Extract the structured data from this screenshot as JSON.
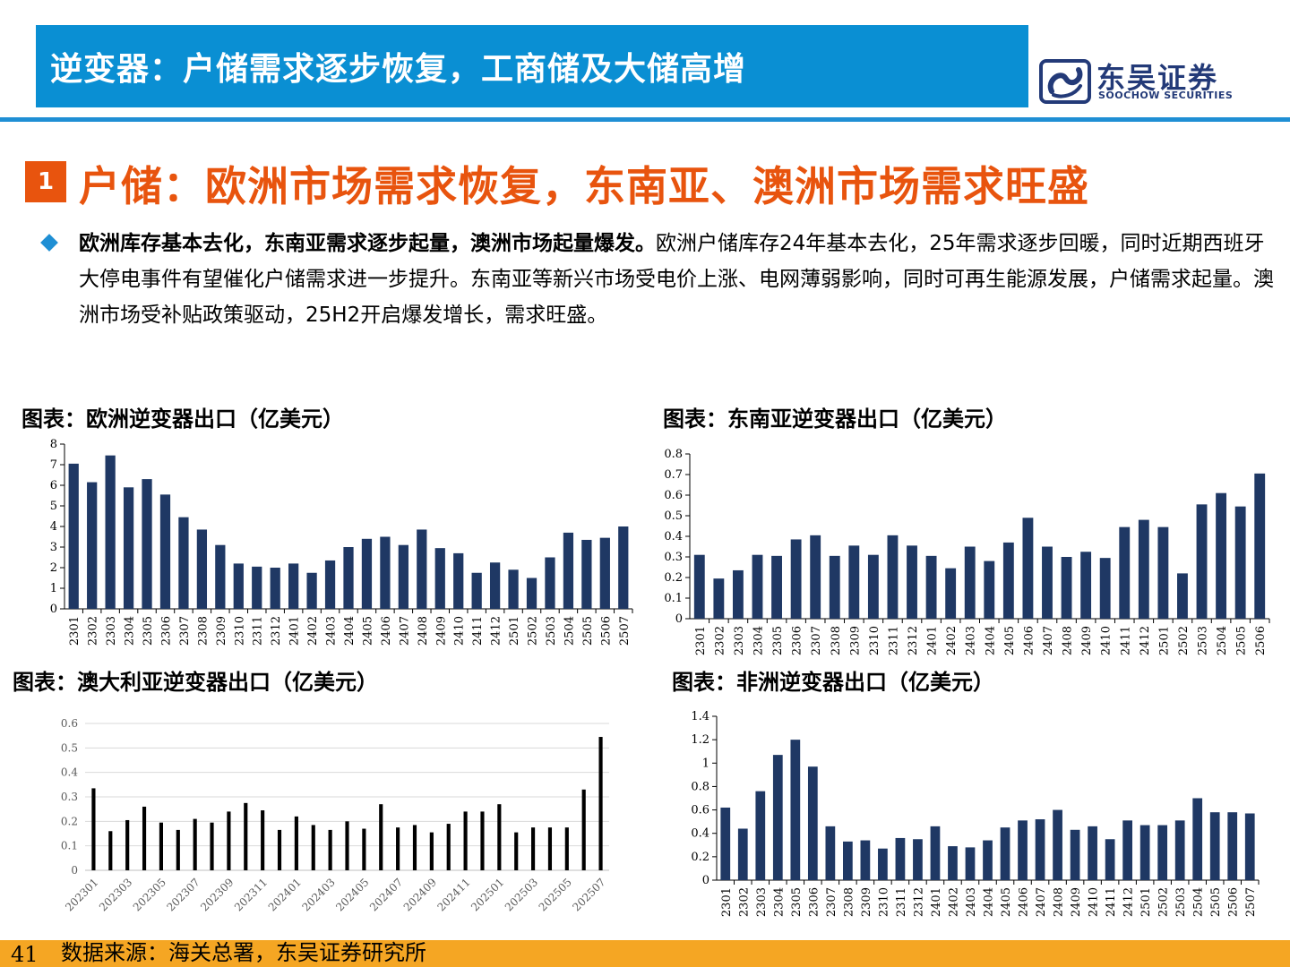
{
  "header": {
    "title": "逆变器：户储需求逐步恢复，工商储及大储高增",
    "logo_cn": "东吴证券",
    "logo_en": "SOOCHOW SECURITIES"
  },
  "section": {
    "number": "1",
    "title": "户储：欧洲市场需求恢复，东南亚、澳洲市场需求旺盛"
  },
  "paragraph": {
    "bold": "欧洲库存基本去化，东南亚需求逐步起量，澳洲市场起量爆发。",
    "text": "欧洲户储库存24年基本去化，25年需求逐步回暖，同时近期西班牙大停电事件有望催化户储需求进一步提升。东南亚等新兴市场受电价上涨、电网薄弱影响，同时可再生能源发展，户储需求起量。澳洲市场受补贴政策驱动，25H2开启爆发增长，需求旺盛。"
  },
  "chart_titles": {
    "europe": "图表：欧洲逆变器出口（亿美元）",
    "sea": "图表：东南亚逆变器出口（亿美元）",
    "australia": "图表：澳大利亚逆变器出口（亿美元）",
    "africa": "图表：非洲逆变器出口（亿美元）"
  },
  "chart_data": [
    {
      "id": "europe",
      "type": "bar",
      "color": "#1f3864",
      "categories": [
        "2301",
        "2302",
        "2303",
        "2304",
        "2305",
        "2306",
        "2307",
        "2308",
        "2309",
        "2310",
        "2311",
        "2312",
        "2401",
        "2402",
        "2403",
        "2404",
        "2405",
        "2406",
        "2407",
        "2408",
        "2409",
        "2410",
        "2411",
        "2412",
        "2501",
        "2502",
        "2503",
        "2504",
        "2505",
        "2506",
        "2507"
      ],
      "values": [
        7.05,
        6.15,
        7.45,
        5.9,
        6.3,
        5.55,
        4.45,
        3.85,
        3.1,
        2.2,
        2.05,
        2.0,
        2.2,
        1.75,
        2.35,
        3.0,
        3.4,
        3.5,
        3.1,
        3.85,
        2.95,
        2.7,
        1.75,
        2.25,
        1.9,
        1.5,
        2.5,
        3.7,
        3.35,
        3.45,
        4.0
      ],
      "ylim": [
        0,
        8
      ],
      "yticks": [
        "0",
        "1",
        "2",
        "3",
        "4",
        "5",
        "6",
        "7",
        "8"
      ]
    },
    {
      "id": "sea",
      "type": "bar",
      "color": "#1f3864",
      "categories": [
        "2301",
        "2302",
        "2303",
        "2304",
        "2305",
        "2306",
        "2307",
        "2308",
        "2309",
        "2310",
        "2311",
        "2312",
        "2401",
        "2402",
        "2403",
        "2404",
        "2405",
        "2406",
        "2407",
        "2408",
        "2409",
        "2410",
        "2411",
        "2412",
        "2501",
        "2502",
        "2503",
        "2504",
        "2505",
        "2506"
      ],
      "values": [
        0.31,
        0.195,
        0.235,
        0.31,
        0.305,
        0.385,
        0.405,
        0.305,
        0.355,
        0.31,
        0.405,
        0.355,
        0.305,
        0.245,
        0.35,
        0.28,
        0.37,
        0.49,
        0.35,
        0.3,
        0.325,
        0.295,
        0.445,
        0.48,
        0.445,
        0.22,
        0.555,
        0.61,
        0.545,
        0.705
      ],
      "ylim": [
        0,
        0.8
      ],
      "yticks": [
        "0",
        "0.1",
        "0.2",
        "0.3",
        "0.4",
        "0.5",
        "0.6",
        "0.7",
        "0.8"
      ]
    },
    {
      "id": "australia",
      "type": "bar",
      "color": "#000000",
      "categories": [
        "202301",
        "202302",
        "202303",
        "202304",
        "202305",
        "202306",
        "202307",
        "202308",
        "202309",
        "202310",
        "202311",
        "202312",
        "202401",
        "202402",
        "202403",
        "202404",
        "202405",
        "202406",
        "202407",
        "202408",
        "202409",
        "202410",
        "202411",
        "202412",
        "202501",
        "202502",
        "202503",
        "202504",
        "202505",
        "202506",
        "202507"
      ],
      "xtick_labels": [
        "202301",
        "202303",
        "202305",
        "202307",
        "202309",
        "202311",
        "202401",
        "202403",
        "202405",
        "202407",
        "202409",
        "202411",
        "202501",
        "202503",
        "202505",
        "202507"
      ],
      "values": [
        0.335,
        0.16,
        0.205,
        0.26,
        0.195,
        0.165,
        0.21,
        0.195,
        0.24,
        0.275,
        0.245,
        0.165,
        0.22,
        0.185,
        0.165,
        0.2,
        0.17,
        0.27,
        0.175,
        0.185,
        0.155,
        0.19,
        0.24,
        0.24,
        0.27,
        0.155,
        0.175,
        0.175,
        0.175,
        0.33,
        0.545
      ],
      "ylim": [
        0,
        0.6
      ],
      "yticks": [
        "0",
        "0.1",
        "0.2",
        "0.3",
        "0.4",
        "0.5",
        "0.6"
      ],
      "grid": true
    },
    {
      "id": "africa",
      "type": "bar",
      "color": "#1f3864",
      "categories": [
        "2301",
        "2302",
        "2303",
        "2304",
        "2305",
        "2306",
        "2307",
        "2308",
        "2309",
        "2310",
        "2311",
        "2312",
        "2401",
        "2402",
        "2403",
        "2404",
        "2405",
        "2406",
        "2407",
        "2408",
        "2409",
        "2410",
        "2411",
        "2412",
        "2501",
        "2502",
        "2503",
        "2504",
        "2505",
        "2506",
        "2507"
      ],
      "values": [
        0.62,
        0.44,
        0.76,
        1.07,
        1.2,
        0.97,
        0.46,
        0.33,
        0.34,
        0.27,
        0.36,
        0.35,
        0.46,
        0.29,
        0.28,
        0.34,
        0.45,
        0.51,
        0.52,
        0.6,
        0.43,
        0.46,
        0.35,
        0.51,
        0.47,
        0.47,
        0.51,
        0.7,
        0.58,
        0.58,
        0.57
      ],
      "ylim": [
        0,
        1.4
      ],
      "yticks": [
        "0",
        "0.2",
        "0.4",
        "0.6",
        "0.8",
        "1",
        "1.2",
        "1.4"
      ]
    }
  ],
  "footer": {
    "page": "41",
    "source": "数据来源：海关总署，东吴证券研究所"
  }
}
